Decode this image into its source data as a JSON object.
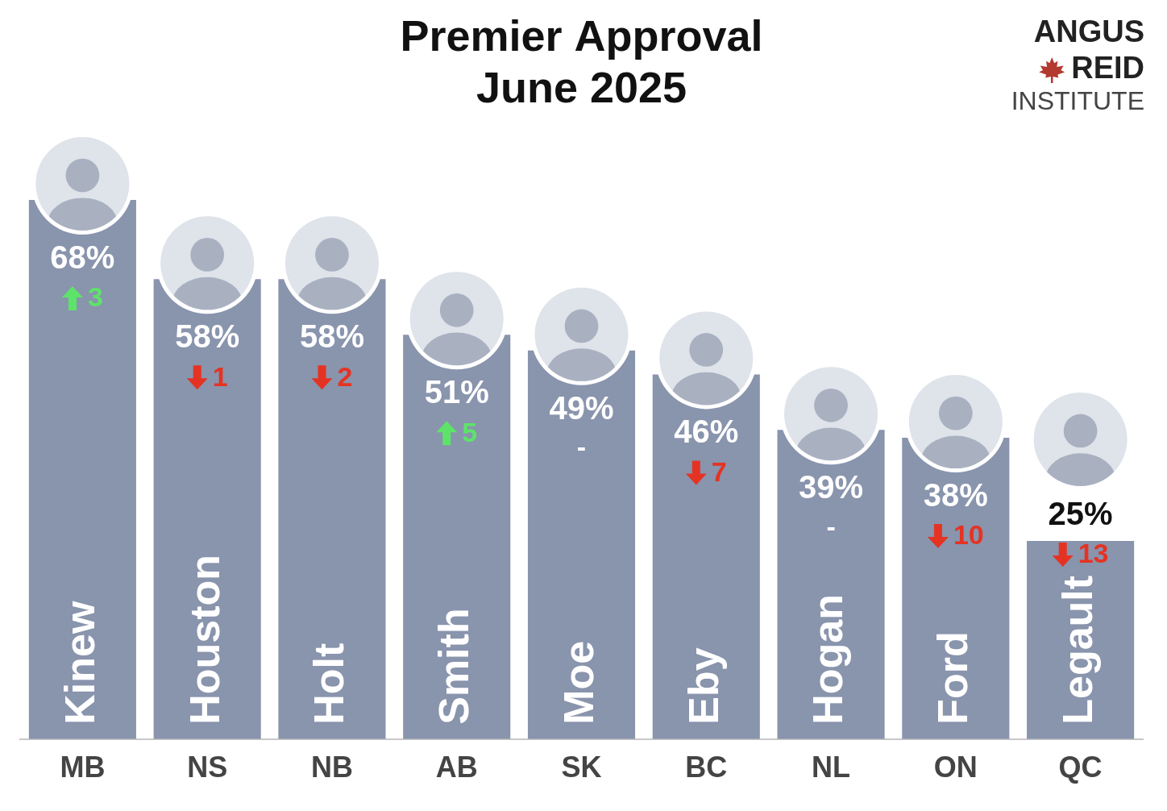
{
  "chart_data": {
    "type": "bar",
    "title": "Premier Approval",
    "subtitle": "June 2025",
    "logo": [
      "ANGUS",
      "REID",
      "INSTITUTE"
    ],
    "categories": [
      "MB",
      "NS",
      "NB",
      "AB",
      "SK",
      "BC",
      "NL",
      "ON",
      "QC"
    ],
    "premiers": [
      "Kinew",
      "Houston",
      "Holt",
      "Smith",
      "Moe",
      "Eby",
      "Hogan",
      "Ford",
      "Legault"
    ],
    "values": [
      68,
      58,
      58,
      51,
      49,
      46,
      39,
      38,
      25
    ],
    "value_labels": [
      "68%",
      "58%",
      "58%",
      "51%",
      "49%",
      "46%",
      "39%",
      "38%",
      "25%"
    ],
    "changes": [
      3,
      -1,
      -2,
      5,
      0,
      -7,
      0,
      -10,
      -13
    ],
    "change_labels": [
      "3",
      "1",
      "2",
      "5",
      "-",
      "7",
      "-",
      "10",
      "13"
    ],
    "color": "#8994ad",
    "ylim": [
      0,
      68
    ],
    "grid": false,
    "data_labels": true,
    "tick_labels": "x"
  }
}
